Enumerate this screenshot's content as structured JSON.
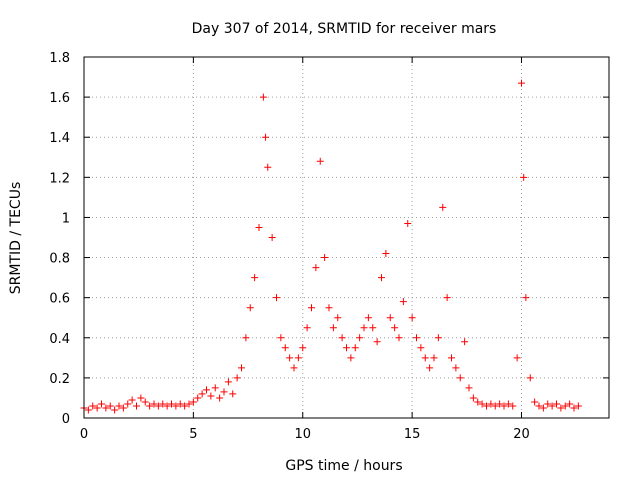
{
  "chart_data": {
    "type": "scatter",
    "title": "Day 307 of 2014, SRMTID for receiver mars",
    "xlabel": "GPS time / hours",
    "ylabel": "SRMTID / TECUs",
    "xlim": [
      0,
      24
    ],
    "ylim": [
      0,
      1.8
    ],
    "xticks": [
      0,
      5,
      10,
      15,
      20
    ],
    "yticks": [
      0,
      0.2,
      0.4,
      0.6,
      0.8,
      1,
      1.2,
      1.4,
      1.6,
      1.8
    ],
    "xtick_labels": [
      "0",
      "5",
      "10",
      "15",
      "20"
    ],
    "ytick_labels": [
      "0",
      "0.2",
      "0.4",
      "0.6",
      "0.8",
      "1",
      "1.2",
      "1.4",
      "1.6",
      "1.8"
    ],
    "grid": true,
    "marker": "+",
    "color": "#ff0000",
    "series": [
      {
        "name": "SRMTID",
        "points": [
          [
            0.0,
            0.05
          ],
          [
            0.2,
            0.04
          ],
          [
            0.4,
            0.06
          ],
          [
            0.6,
            0.05
          ],
          [
            0.8,
            0.07
          ],
          [
            1.0,
            0.05
          ],
          [
            1.2,
            0.06
          ],
          [
            1.4,
            0.04
          ],
          [
            1.6,
            0.06
          ],
          [
            1.8,
            0.05
          ],
          [
            2.0,
            0.07
          ],
          [
            2.2,
            0.09
          ],
          [
            2.4,
            0.06
          ],
          [
            2.6,
            0.1
          ],
          [
            2.8,
            0.08
          ],
          [
            3.0,
            0.06
          ],
          [
            3.2,
            0.07
          ],
          [
            3.4,
            0.06
          ],
          [
            3.6,
            0.07
          ],
          [
            3.8,
            0.06
          ],
          [
            4.0,
            0.07
          ],
          [
            4.2,
            0.06
          ],
          [
            4.4,
            0.07
          ],
          [
            4.6,
            0.06
          ],
          [
            4.8,
            0.07
          ],
          [
            5.0,
            0.08
          ],
          [
            5.2,
            0.1
          ],
          [
            5.4,
            0.12
          ],
          [
            5.6,
            0.14
          ],
          [
            5.8,
            0.11
          ],
          [
            6.0,
            0.15
          ],
          [
            6.2,
            0.1
          ],
          [
            6.4,
            0.13
          ],
          [
            6.6,
            0.18
          ],
          [
            6.8,
            0.12
          ],
          [
            7.0,
            0.2
          ],
          [
            7.2,
            0.25
          ],
          [
            7.4,
            0.4
          ],
          [
            7.6,
            0.55
          ],
          [
            7.8,
            0.7
          ],
          [
            8.0,
            0.95
          ],
          [
            8.2,
            1.6
          ],
          [
            8.3,
            1.4
          ],
          [
            8.4,
            1.25
          ],
          [
            8.6,
            0.9
          ],
          [
            8.8,
            0.6
          ],
          [
            9.0,
            0.4
          ],
          [
            9.2,
            0.35
          ],
          [
            9.4,
            0.3
          ],
          [
            9.6,
            0.25
          ],
          [
            9.8,
            0.3
          ],
          [
            10.0,
            0.35
          ],
          [
            10.2,
            0.45
          ],
          [
            10.4,
            0.55
          ],
          [
            10.6,
            0.75
          ],
          [
            10.8,
            1.28
          ],
          [
            11.0,
            0.8
          ],
          [
            11.2,
            0.55
          ],
          [
            11.4,
            0.45
          ],
          [
            11.6,
            0.5
          ],
          [
            11.8,
            0.4
          ],
          [
            12.0,
            0.35
          ],
          [
            12.2,
            0.3
          ],
          [
            12.4,
            0.35
          ],
          [
            12.6,
            0.4
          ],
          [
            12.8,
            0.45
          ],
          [
            13.0,
            0.5
          ],
          [
            13.2,
            0.45
          ],
          [
            13.4,
            0.38
          ],
          [
            13.6,
            0.7
          ],
          [
            13.8,
            0.82
          ],
          [
            14.0,
            0.5
          ],
          [
            14.2,
            0.45
          ],
          [
            14.4,
            0.4
          ],
          [
            14.6,
            0.58
          ],
          [
            14.8,
            0.97
          ],
          [
            15.0,
            0.5
          ],
          [
            15.2,
            0.4
          ],
          [
            15.4,
            0.35
          ],
          [
            15.6,
            0.3
          ],
          [
            15.8,
            0.25
          ],
          [
            16.0,
            0.3
          ],
          [
            16.2,
            0.4
          ],
          [
            16.4,
            1.05
          ],
          [
            16.6,
            0.6
          ],
          [
            16.8,
            0.3
          ],
          [
            17.0,
            0.25
          ],
          [
            17.2,
            0.2
          ],
          [
            17.4,
            0.38
          ],
          [
            17.6,
            0.15
          ],
          [
            17.8,
            0.1
          ],
          [
            18.0,
            0.08
          ],
          [
            18.2,
            0.07
          ],
          [
            18.4,
            0.06
          ],
          [
            18.6,
            0.07
          ],
          [
            18.8,
            0.06
          ],
          [
            19.0,
            0.07
          ],
          [
            19.2,
            0.06
          ],
          [
            19.4,
            0.07
          ],
          [
            19.6,
            0.06
          ],
          [
            19.8,
            0.3
          ],
          [
            20.0,
            1.67
          ],
          [
            20.1,
            1.2
          ],
          [
            20.2,
            0.6
          ],
          [
            20.4,
            0.2
          ],
          [
            20.6,
            0.08
          ],
          [
            20.8,
            0.06
          ],
          [
            21.0,
            0.05
          ],
          [
            21.2,
            0.07
          ],
          [
            21.4,
            0.06
          ],
          [
            21.6,
            0.07
          ],
          [
            21.8,
            0.05
          ],
          [
            22.0,
            0.06
          ],
          [
            22.2,
            0.07
          ],
          [
            22.4,
            0.05
          ],
          [
            22.6,
            0.06
          ]
        ]
      }
    ]
  }
}
